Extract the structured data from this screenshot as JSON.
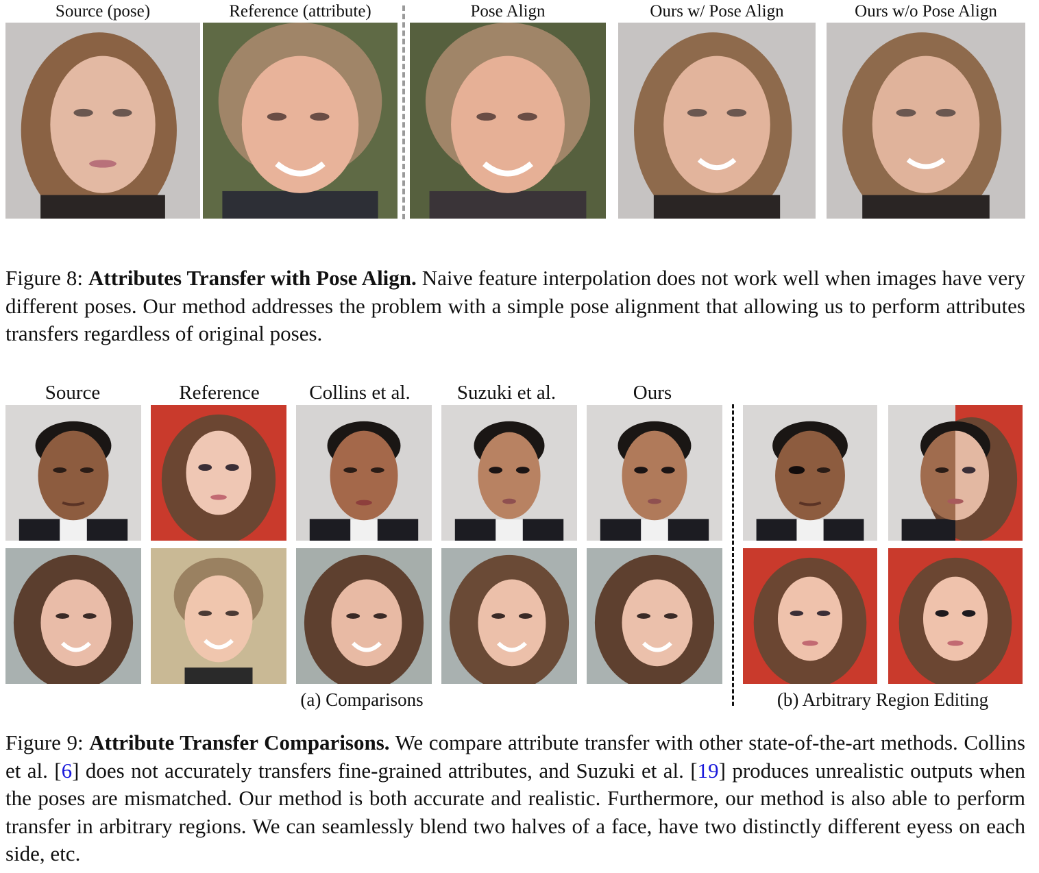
{
  "figure8": {
    "headers": [
      "Source (pose)",
      "Reference (attribute)",
      "Pose Align",
      "Ours w/ Pose Align",
      "Ours w/o Pose Align"
    ],
    "caption_label": "Figure 8:",
    "caption_title": "Attributes Transfer with Pose Align.",
    "caption_body": "Naive feature interpolation does not work well when images have very different poses.  Our method addresses the problem with a simple pose alignment that allowing us to perform attributes transfers regardless of original poses."
  },
  "figure9": {
    "headers": [
      "Source",
      "Reference",
      "Collins et al.",
      "Suzuki et al.",
      "Ours"
    ],
    "sub_a": "(a) Comparisons",
    "sub_b": "(b) Arbitrary Region Editing",
    "caption_label": "Figure 9:",
    "caption_title": "Attribute Transfer Comparisons.",
    "caption_p1": "We compare attribute transfer with other state-of-the-art methods.  Collins et al. [",
    "ref1": "6",
    "caption_p2": "] does not accurately transfers fine-grained attributes, and Suzuki et al. [",
    "ref2": "19",
    "caption_p3": "] produces unrealistic outputs when the poses are mismatched. Our method is both accurate and realistic. Furthermore, our method is also able to perform transfer in arbitrary regions. We can seamlessly blend two halves of a face, have two distinctly different eyess on each side, etc."
  },
  "colors": {
    "link": "#1a1adb",
    "bg_gray": "#d9d7d6",
    "bg_red": "#c93a2c",
    "bg_green": "#5a6440",
    "bg_beige": "#c9b995",
    "bg_blur": "#a9b1b0"
  }
}
